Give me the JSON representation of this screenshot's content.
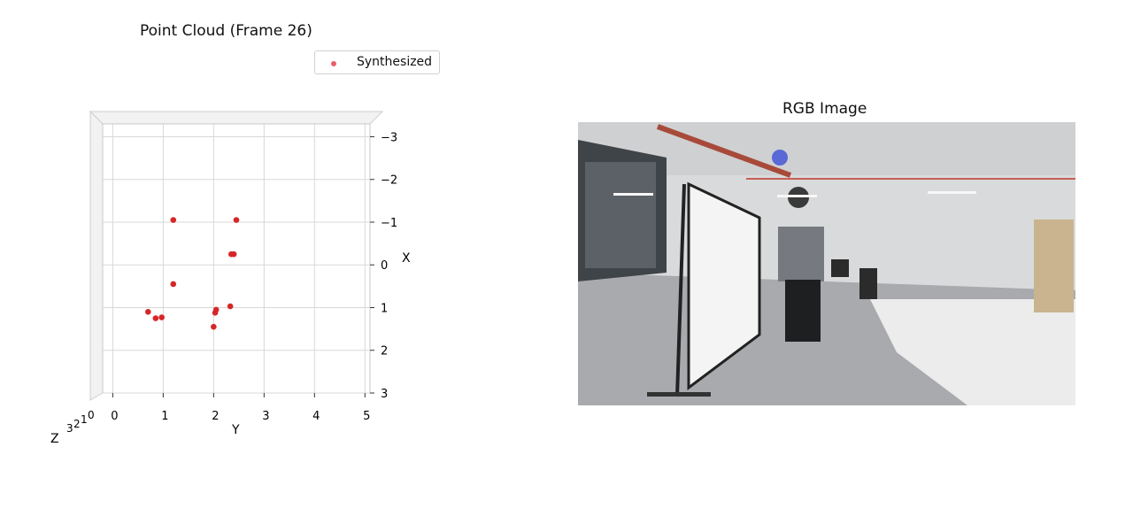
{
  "chart_data": [
    {
      "type": "scatter",
      "title": "Point Cloud (Frame 26)",
      "legend": {
        "entries": [
          "Synthesized"
        ],
        "placement": "top-right"
      },
      "series": [
        {
          "name": "Synthesized",
          "color": "#d62728",
          "points": [
            {
              "y": 1.2,
              "x": -1.05
            },
            {
              "y": 2.45,
              "x": -1.05
            },
            {
              "y": 2.4,
              "x": -0.25
            },
            {
              "y": 2.35,
              "x": -0.25
            },
            {
              "y": 1.2,
              "x": 0.45
            },
            {
              "y": 0.7,
              "x": 1.1
            },
            {
              "y": 0.85,
              "x": 1.25
            },
            {
              "y": 0.97,
              "x": 1.23
            },
            {
              "y": 2.05,
              "x": 1.05
            },
            {
              "y": 2.03,
              "x": 1.12
            },
            {
              "y": 2.33,
              "x": 0.97
            },
            {
              "y": 2.0,
              "x": 1.45
            }
          ]
        }
      ],
      "axes": {
        "y": {
          "label": "Y",
          "ticks": [
            "0",
            "1",
            "2",
            "3",
            "4",
            "5"
          ],
          "range": [
            -0.2,
            5.1
          ]
        },
        "x": {
          "label": "X",
          "ticks": [
            "−3",
            "−2",
            "−1",
            "0",
            "1",
            "2",
            "3"
          ],
          "range": [
            -3.3,
            3.0
          ]
        },
        "z": {
          "label": "Z",
          "ticks": [
            "3",
            "2",
            "1",
            "0"
          ]
        }
      },
      "grid": true,
      "view": "3d projection viewed from above the z axis"
    }
  ],
  "image_panel": {
    "title": "RGB Image"
  }
}
